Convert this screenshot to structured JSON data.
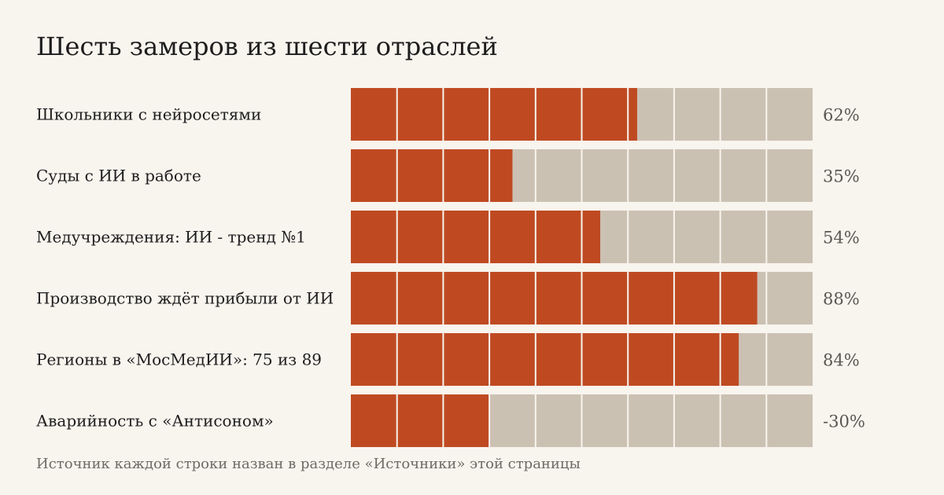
{
  "colors": {
    "background": "#f8f4ee",
    "filled": "#bf4a22",
    "track": "#cbc1b3",
    "separator": "#f8f4ee",
    "label_text": "#1d1d1d",
    "value_text": "#5a5650",
    "source_text": "#6e6a64"
  },
  "chart_data": {
    "type": "bar",
    "orientation": "horizontal",
    "title": "Шесть замеров из шести отраслей",
    "source_note": "Источник каждой строки назван в разделе «Источники» этой страницы",
    "xlim": [
      0,
      100
    ],
    "segments_per_bar": 10,
    "grid": false,
    "legend": "none",
    "categories": [
      "Школьники с нейросетями",
      "Суды с ИИ в работе",
      "Медучреждения: ИИ - тренд №1",
      "Производство ждёт прибыли от ИИ",
      "Регионы в «МосМедИИ»: 75 из 89",
      "Аварийность с «Антисоном»"
    ],
    "values": [
      62,
      35,
      54,
      88,
      84,
      30
    ],
    "value_labels": [
      "62%",
      "35%",
      "54%",
      "88%",
      "84%",
      "-30%"
    ]
  }
}
